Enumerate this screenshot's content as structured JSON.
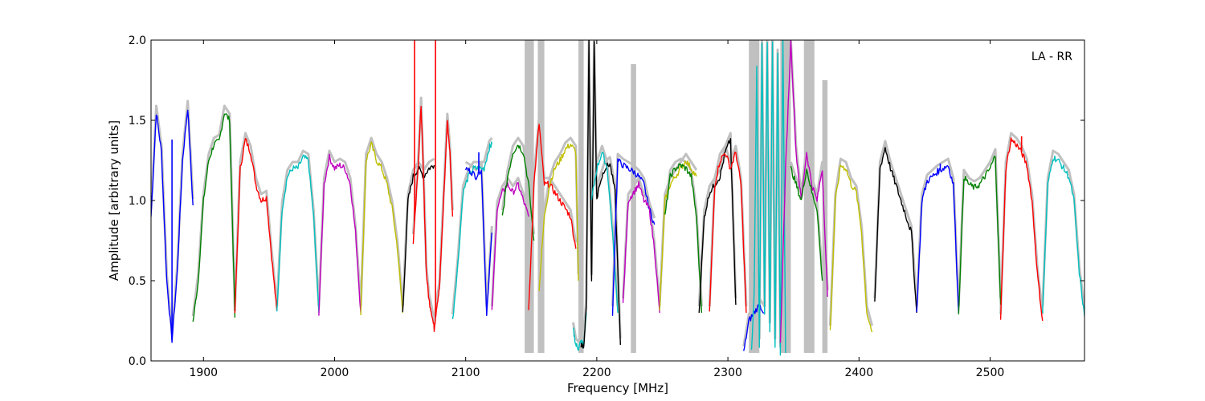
{
  "chart_data": {
    "type": "line",
    "title": "",
    "annotation": "LA - RR",
    "xlabel": "Frequency [MHz]",
    "ylabel": "Amplitude [arbitrary units]",
    "xlim": [
      1860,
      2572
    ],
    "ylim": [
      0.0,
      2.0
    ],
    "xticks": [
      1900,
      2000,
      2100,
      2200,
      2300,
      2400,
      2500
    ],
    "xtick_labels": [
      "1900",
      "2000",
      "2100",
      "2200",
      "2300",
      "2400",
      "2500"
    ],
    "yticks": [
      0.0,
      0.5,
      1.0,
      1.5,
      2.0
    ],
    "ytick_labels": [
      "0.0",
      "0.5",
      "1.0",
      "1.5",
      "2.0"
    ],
    "grid": false,
    "background_color": "#c0c0c0",
    "colors": {
      "blue": "#0000ff",
      "green": "#008000",
      "red": "#ff0000",
      "cyan": "#00bfbf",
      "magenta": "#bf00bf",
      "olive": "#bfbf00",
      "black": "#000000",
      "gray": "#c0c0c0"
    },
    "background_spikes": [
      {
        "x": [
          2145,
          2152
        ],
        "y": 2.0
      },
      {
        "x": [
          2155,
          2160
        ],
        "y": 2.0
      },
      {
        "x": [
          2186,
          2190
        ],
        "y": 2.0
      },
      {
        "x": [
          2226,
          2230
        ],
        "y": 1.85
      },
      {
        "x": [
          2316,
          2324
        ],
        "y": 2.0
      },
      {
        "x": [
          2340,
          2348
        ],
        "y": 2.0
      },
      {
        "x": [
          2358,
          2366
        ],
        "y": 2.0
      },
      {
        "x": [
          2372,
          2376
        ],
        "y": 1.75
      }
    ],
    "series": [
      {
        "color": "blue",
        "x": [
          1860,
          1864,
          1868,
          1872,
          1876,
          1880,
          1884,
          1888,
          1892
        ],
        "y": [
          0.9,
          1.55,
          1.3,
          0.5,
          0.13,
          0.55,
          1.25,
          1.58,
          0.97
        ],
        "spikes": [
          [
            1876,
            1.38
          ]
        ]
      },
      {
        "color": "green",
        "x": [
          1892,
          1896,
          1900,
          1904,
          1908,
          1912,
          1916,
          1920,
          1924
        ],
        "y": [
          0.24,
          0.5,
          1.0,
          1.25,
          1.35,
          1.37,
          1.55,
          1.5,
          0.27
        ]
      },
      {
        "color": "red",
        "x": [
          1924,
          1928,
          1932,
          1936,
          1940,
          1944,
          1948,
          1952,
          1956
        ],
        "y": [
          0.3,
          1.2,
          1.38,
          1.3,
          1.1,
          1.0,
          1.02,
          0.65,
          0.31
        ]
      },
      {
        "color": "cyan",
        "x": [
          1956,
          1960,
          1964,
          1968,
          1972,
          1976,
          1980,
          1984,
          1988
        ],
        "y": [
          0.3,
          0.95,
          1.15,
          1.2,
          1.2,
          1.27,
          1.25,
          0.9,
          0.3
        ]
      },
      {
        "color": "magenta",
        "x": [
          1988,
          1992,
          1996,
          2000,
          2004,
          2008,
          2012,
          2016,
          2020
        ],
        "y": [
          0.3,
          1.1,
          1.27,
          1.2,
          1.22,
          1.2,
          1.1,
          0.8,
          0.3
        ]
      },
      {
        "color": "olive",
        "x": [
          2020,
          2024,
          2028,
          2032,
          2036,
          2040,
          2044,
          2048,
          2052
        ],
        "y": [
          0.3,
          1.25,
          1.35,
          1.25,
          1.2,
          1.1,
          0.95,
          0.7,
          0.3
        ]
      },
      {
        "color": "black",
        "x": [
          2052,
          2056,
          2060,
          2064,
          2068,
          2072,
          2076
        ],
        "y": [
          0.3,
          1.0,
          1.15,
          1.2,
          1.15,
          1.2,
          1.22
        ]
      },
      {
        "color": "red",
        "x": [
          2060,
          2064,
          2066,
          2068,
          2070,
          2072,
          2074,
          2076,
          2078,
          2080,
          2082,
          2086,
          2088,
          2090
        ],
        "y": [
          0.75,
          1.25,
          1.6,
          1.1,
          0.55,
          0.38,
          0.3,
          0.2,
          0.35,
          0.45,
          0.8,
          1.5,
          1.3,
          0.9
        ],
        "spikes": [
          [
            2061,
            2.0
          ],
          [
            2077,
            2.0
          ]
        ]
      },
      {
        "color": "cyan",
        "x": [
          2090,
          2094,
          2098,
          2102,
          2106,
          2110,
          2114,
          2118,
          2120
        ],
        "y": [
          0.25,
          0.6,
          1.05,
          1.15,
          1.2,
          1.2,
          1.2,
          1.33,
          1.35
        ]
      },
      {
        "color": "blue",
        "x": [
          2100,
          2104,
          2108,
          2112,
          2116,
          2120
        ],
        "y": [
          1.2,
          1.18,
          1.15,
          1.2,
          0.3,
          0.8
        ],
        "spikes": [
          [
            2110,
            1.3
          ]
        ]
      },
      {
        "color": "magenta",
        "x": [
          2120,
          2124,
          2128,
          2132,
          2136,
          2140,
          2144,
          2148
        ],
        "y": [
          0.3,
          0.95,
          1.05,
          1.1,
          1.05,
          1.1,
          1.0,
          0.9
        ]
      },
      {
        "color": "green",
        "x": [
          2128,
          2132,
          2136,
          2140,
          2144,
          2148,
          2152
        ],
        "y": [
          0.9,
          1.15,
          1.3,
          1.35,
          1.3,
          1.1,
          0.75
        ]
      },
      {
        "color": "red",
        "x": [
          2148,
          2152,
          2156,
          2160,
          2164,
          2168,
          2172,
          2176,
          2180,
          2184
        ],
        "y": [
          0.3,
          1.1,
          1.48,
          1.1,
          1.1,
          1.05,
          1.0,
          0.95,
          0.9,
          0.7
        ]
      },
      {
        "color": "olive",
        "x": [
          2156,
          2160,
          2164,
          2168,
          2172,
          2176,
          2180,
          2184,
          2186
        ],
        "y": [
          0.45,
          0.9,
          1.1,
          1.2,
          1.25,
          1.32,
          1.35,
          1.3,
          0.5
        ]
      },
      {
        "color": "cyan",
        "x": [
          2182,
          2184,
          2186,
          2188,
          2190,
          2192
        ],
        "y": [
          0.2,
          0.1,
          0.08,
          0.12,
          0.1,
          0.3
        ]
      },
      {
        "color": "black",
        "x": [
          2188,
          2190,
          2192,
          2194,
          2196,
          2198,
          2200,
          2202,
          2206,
          2210,
          2214,
          2218
        ],
        "y": [
          0.1,
          0.08,
          0.35,
          2.0,
          0.5,
          2.0,
          1.0,
          1.1,
          1.2,
          1.23,
          1.05,
          0.1
        ]
      },
      {
        "color": "cyan",
        "x": [
          2196,
          2200,
          2204,
          2208,
          2212,
          2216
        ],
        "y": [
          1.0,
          1.2,
          1.3,
          1.2,
          0.8,
          0.3
        ]
      },
      {
        "color": "blue",
        "x": [
          2212,
          2216,
          2220,
          2224,
          2228,
          2232,
          2236,
          2240,
          2244
        ],
        "y": [
          0.3,
          1.25,
          1.22,
          1.2,
          1.18,
          1.15,
          1.1,
          0.95,
          0.85
        ]
      },
      {
        "color": "magenta",
        "x": [
          2220,
          2224,
          2228,
          2232,
          2236,
          2240,
          2244,
          2248
        ],
        "y": [
          0.35,
          1.0,
          1.05,
          1.1,
          1.0,
          0.95,
          0.7,
          0.3
        ]
      },
      {
        "color": "olive",
        "x": [
          2248,
          2252,
          2256,
          2260,
          2264,
          2268,
          2272,
          2276
        ],
        "y": [
          0.32,
          1.0,
          1.1,
          1.15,
          1.2,
          1.25,
          1.2,
          1.15
        ]
      },
      {
        "color": "green",
        "x": [
          2252,
          2256,
          2260,
          2264,
          2268,
          2272,
          2276,
          2280
        ],
        "y": [
          0.9,
          1.15,
          1.2,
          1.22,
          1.2,
          1.15,
          0.9,
          0.3
        ]
      },
      {
        "color": "black",
        "x": [
          2278,
          2282,
          2286,
          2290,
          2294,
          2298,
          2302,
          2306
        ],
        "y": [
          0.3,
          0.9,
          1.05,
          1.1,
          1.15,
          1.3,
          1.38,
          0.35
        ]
      },
      {
        "color": "red",
        "x": [
          2286,
          2290,
          2294,
          2298,
          2302,
          2306,
          2310,
          2314
        ],
        "y": [
          0.3,
          1.1,
          1.25,
          1.3,
          1.2,
          1.3,
          1.1,
          0.3
        ]
      },
      {
        "color": "blue",
        "x": [
          2312,
          2316,
          2320,
          2324,
          2328
        ],
        "y": [
          0.05,
          0.25,
          0.3,
          0.35,
          0.3
        ]
      },
      {
        "color": "cyan",
        "x": [
          2318,
          2320,
          2322,
          2324,
          2326,
          2328,
          2330,
          2332,
          2334,
          2336,
          2338,
          2340,
          2342,
          2344
        ],
        "y": [
          0.05,
          0.4,
          1.85,
          0.1,
          2.0,
          0.3,
          2.0,
          0.2,
          2.0,
          0.1,
          1.9,
          0.05,
          2.0,
          0.05
        ]
      },
      {
        "color": "magenta",
        "x": [
          2340,
          2344,
          2348,
          2352,
          2356,
          2360,
          2364,
          2368,
          2372,
          2376
        ],
        "y": [
          0.1,
          1.2,
          2.0,
          1.3,
          1.0,
          1.3,
          1.1,
          1.0,
          1.2,
          0.4
        ]
      },
      {
        "color": "green",
        "x": [
          2348,
          2352,
          2356,
          2360,
          2364,
          2368,
          2372
        ],
        "y": [
          1.2,
          1.1,
          1.0,
          1.2,
          1.05,
          0.95,
          0.5
        ]
      },
      {
        "color": "olive",
        "x": [
          2378,
          2382,
          2386,
          2390,
          2394,
          2398,
          2402,
          2406,
          2410
        ],
        "y": [
          0.18,
          1.0,
          1.22,
          1.2,
          1.1,
          1.05,
          0.8,
          0.3,
          0.18
        ]
      },
      {
        "color": "black",
        "x": [
          2412,
          2416,
          2420,
          2424,
          2428,
          2432,
          2436,
          2440,
          2444
        ],
        "y": [
          0.35,
          1.2,
          1.33,
          1.2,
          1.1,
          1.0,
          0.9,
          0.8,
          0.3
        ]
      },
      {
        "color": "blue",
        "x": [
          2444,
          2448,
          2452,
          2456,
          2460,
          2464,
          2468,
          2472,
          2476
        ],
        "y": [
          0.3,
          1.0,
          1.12,
          1.15,
          1.18,
          1.2,
          1.22,
          1.1,
          0.3
        ],
        "spikes": [
          [
            2462,
            1.23
          ]
        ]
      },
      {
        "color": "green",
        "x": [
          2476,
          2480,
          2484,
          2488,
          2492,
          2496,
          2500,
          2504,
          2508
        ],
        "y": [
          0.3,
          1.15,
          1.1,
          1.08,
          1.1,
          1.15,
          1.2,
          1.28,
          0.35
        ]
      },
      {
        "color": "red",
        "x": [
          2508,
          2512,
          2516,
          2520,
          2524,
          2528,
          2532,
          2536,
          2540
        ],
        "y": [
          0.25,
          1.2,
          1.38,
          1.35,
          1.3,
          1.22,
          1.0,
          0.55,
          0.25
        ],
        "spikes": [
          [
            2524,
            1.4
          ]
        ]
      },
      {
        "color": "cyan",
        "x": [
          2540,
          2544,
          2548,
          2552,
          2556,
          2560,
          2564,
          2568,
          2572
        ],
        "y": [
          0.3,
          1.1,
          1.27,
          1.25,
          1.2,
          1.15,
          1.0,
          0.55,
          0.28
        ]
      }
    ]
  }
}
